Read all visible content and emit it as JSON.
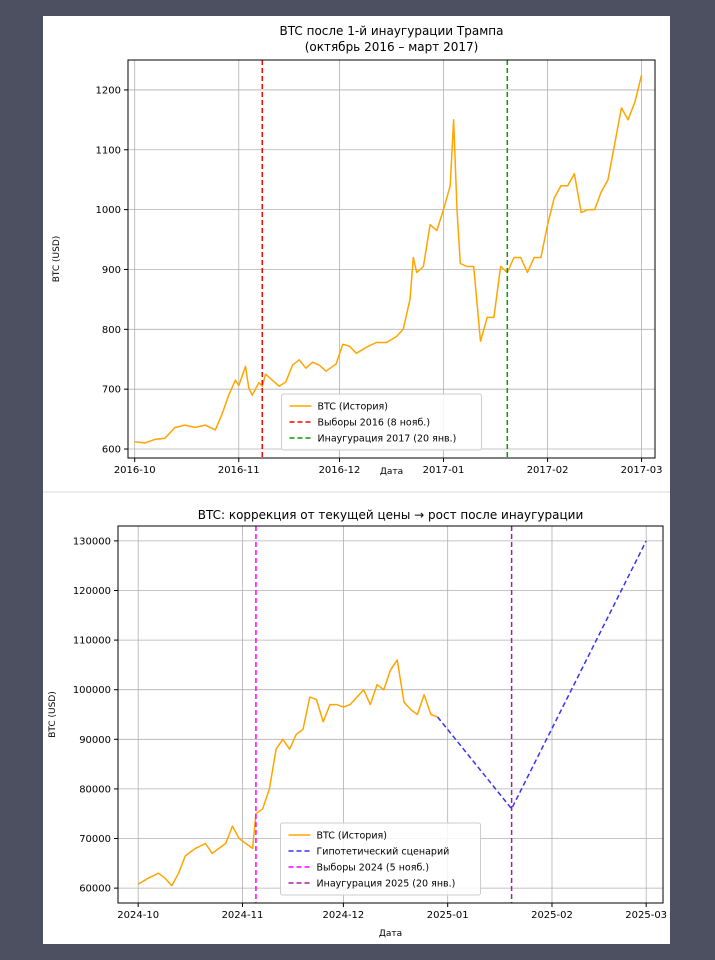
{
  "chart_data": [
    {
      "type": "line",
      "title": "BTC после 1-й инаугурации Трампа",
      "subtitle": "(октябрь 2016 – март 2017)",
      "xlabel": "Дата",
      "ylabel": "BTC (USD)",
      "xlim": [
        "2016-09-29",
        "2017-03-05"
      ],
      "ylim": [
        585,
        1250
      ],
      "x_ticks": [
        "2016-10",
        "2016-11",
        "2016-12",
        "2017-01",
        "2017-02",
        "2017-03"
      ],
      "y_ticks": [
        600,
        700,
        800,
        900,
        1000,
        1100,
        1200
      ],
      "grid": true,
      "legend_position": "lower center",
      "series": [
        {
          "name": "BTC (История)",
          "color": "#ffa500",
          "style": "solid",
          "points": [
            [
              "2016-10-01",
              612
            ],
            [
              "2016-10-04",
              610
            ],
            [
              "2016-10-07",
              616
            ],
            [
              "2016-10-10",
              618
            ],
            [
              "2016-10-13",
              636
            ],
            [
              "2016-10-16",
              640
            ],
            [
              "2016-10-19",
              636
            ],
            [
              "2016-10-22",
              640
            ],
            [
              "2016-10-25",
              632
            ],
            [
              "2016-10-27",
              658
            ],
            [
              "2016-10-29",
              690
            ],
            [
              "2016-10-31",
              715
            ],
            [
              "2016-11-01",
              706
            ],
            [
              "2016-11-03",
              738
            ],
            [
              "2016-11-04",
              702
            ],
            [
              "2016-11-05",
              690
            ],
            [
              "2016-11-07",
              711
            ],
            [
              "2016-11-08",
              705
            ],
            [
              "2016-11-09",
              725
            ],
            [
              "2016-11-11",
              715
            ],
            [
              "2016-11-13",
              705
            ],
            [
              "2016-11-15",
              712
            ],
            [
              "2016-11-17",
              740
            ],
            [
              "2016-11-19",
              749
            ],
            [
              "2016-11-21",
              735
            ],
            [
              "2016-11-23",
              745
            ],
            [
              "2016-11-25",
              740
            ],
            [
              "2016-11-27",
              730
            ],
            [
              "2016-11-30",
              742
            ],
            [
              "2016-12-02",
              775
            ],
            [
              "2016-12-04",
              772
            ],
            [
              "2016-12-06",
              760
            ],
            [
              "2016-12-09",
              770
            ],
            [
              "2016-12-12",
              778
            ],
            [
              "2016-12-15",
              778
            ],
            [
              "2016-12-18",
              788
            ],
            [
              "2016-12-20",
              800
            ],
            [
              "2016-12-22",
              850
            ],
            [
              "2016-12-23",
              920
            ],
            [
              "2016-12-24",
              895
            ],
            [
              "2016-12-26",
              905
            ],
            [
              "2016-12-28",
              975
            ],
            [
              "2016-12-30",
              965
            ],
            [
              "2017-01-01",
              1000
            ],
            [
              "2017-01-03",
              1040
            ],
            [
              "2017-01-04",
              1150
            ],
            [
              "2017-01-05",
              1000
            ],
            [
              "2017-01-06",
              910
            ],
            [
              "2017-01-08",
              905
            ],
            [
              "2017-01-10",
              905
            ],
            [
              "2017-01-12",
              780
            ],
            [
              "2017-01-14",
              820
            ],
            [
              "2017-01-16",
              820
            ],
            [
              "2017-01-18",
              905
            ],
            [
              "2017-01-20",
              895
            ],
            [
              "2017-01-22",
              920
            ],
            [
              "2017-01-24",
              920
            ],
            [
              "2017-01-26",
              895
            ],
            [
              "2017-01-28",
              920
            ],
            [
              "2017-01-30",
              920
            ],
            [
              "2017-02-01",
              975
            ],
            [
              "2017-02-03",
              1020
            ],
            [
              "2017-02-05",
              1040
            ],
            [
              "2017-02-07",
              1040
            ],
            [
              "2017-02-09",
              1060
            ],
            [
              "2017-02-11",
              995
            ],
            [
              "2017-02-13",
              1000
            ],
            [
              "2017-02-15",
              1000
            ],
            [
              "2017-02-17",
              1030
            ],
            [
              "2017-02-19",
              1050
            ],
            [
              "2017-02-21",
              1110
            ],
            [
              "2017-02-23",
              1170
            ],
            [
              "2017-02-25",
              1150
            ],
            [
              "2017-02-27",
              1180
            ],
            [
              "2017-03-01",
              1225
            ]
          ]
        },
        {
          "name": "Выборы 2016 (8 нояб.)",
          "color": "#ff0000",
          "style": "dashed",
          "vline": "2016-11-08"
        },
        {
          "name": "Инаугурация 2017 (20 янв.)",
          "color": "#00a000",
          "style": "dashed",
          "vline": "2017-01-20"
        }
      ]
    },
    {
      "type": "line",
      "title": "BTC: коррекция от текущей цены → рост после инаугурации",
      "xlabel": "Дата",
      "ylabel": "BTC (USD)",
      "xlim": [
        "2024-09-25",
        "2025-03-06"
      ],
      "ylim": [
        57000,
        133000
      ],
      "x_ticks": [
        "2024-10",
        "2024-11",
        "2024-12",
        "2025-01",
        "2025-02",
        "2025-03"
      ],
      "y_ticks": [
        60000,
        70000,
        80000,
        90000,
        100000,
        110000,
        120000,
        130000
      ],
      "grid": true,
      "legend_position": "lower center",
      "series": [
        {
          "name": "BTC (История)",
          "color": "#ffa500",
          "style": "solid",
          "points": [
            [
              "2024-10-01",
              60800
            ],
            [
              "2024-10-04",
              62000
            ],
            [
              "2024-10-07",
              63000
            ],
            [
              "2024-10-09",
              62000
            ],
            [
              "2024-10-11",
              60500
            ],
            [
              "2024-10-13",
              63000
            ],
            [
              "2024-10-15",
              66500
            ],
            [
              "2024-10-18",
              68000
            ],
            [
              "2024-10-21",
              69000
            ],
            [
              "2024-10-23",
              67000
            ],
            [
              "2024-10-25",
              68000
            ],
            [
              "2024-10-27",
              69000
            ],
            [
              "2024-10-29",
              72500
            ],
            [
              "2024-10-31",
              70000
            ],
            [
              "2024-11-02",
              69000
            ],
            [
              "2024-11-04",
              68000
            ],
            [
              "2024-11-05",
              75000
            ],
            [
              "2024-11-07",
              76000
            ],
            [
              "2024-11-09",
              80000
            ],
            [
              "2024-11-11",
              88000
            ],
            [
              "2024-11-13",
              90000
            ],
            [
              "2024-11-15",
              88000
            ],
            [
              "2024-11-17",
              91000
            ],
            [
              "2024-11-19",
              92000
            ],
            [
              "2024-11-21",
              98500
            ],
            [
              "2024-11-23",
              98000
            ],
            [
              "2024-11-25",
              93500
            ],
            [
              "2024-11-27",
              97000
            ],
            [
              "2024-11-29",
              97000
            ],
            [
              "2024-12-01",
              96500
            ],
            [
              "2024-12-03",
              97000
            ],
            [
              "2024-12-05",
              98500
            ],
            [
              "2024-12-07",
              100000
            ],
            [
              "2024-12-09",
              97000
            ],
            [
              "2024-12-11",
              101000
            ],
            [
              "2024-12-13",
              100000
            ],
            [
              "2024-12-15",
              104000
            ],
            [
              "2024-12-17",
              106000
            ],
            [
              "2024-12-19",
              97500
            ],
            [
              "2024-12-21",
              96000
            ],
            [
              "2024-12-23",
              95000
            ],
            [
              "2024-12-25",
              99000
            ],
            [
              "2024-12-27",
              95000
            ],
            [
              "2024-12-29",
              94500
            ]
          ]
        },
        {
          "name": "Гипотетический сценарий",
          "color": "#3333ff",
          "style": "dashed",
          "points": [
            [
              "2024-12-29",
              94500
            ],
            [
              "2025-01-20",
              76000
            ],
            [
              "2025-03-01",
              130000
            ]
          ]
        },
        {
          "name": "Выборы 2024 (5 нояб.)",
          "color": "#ff00ff",
          "style": "dashed",
          "vline": "2024-11-05"
        },
        {
          "name": "Инаугурация 2025 (20 янв.)",
          "color": "#a020a0",
          "style": "dashed",
          "vline": "2025-01-20"
        }
      ]
    }
  ]
}
